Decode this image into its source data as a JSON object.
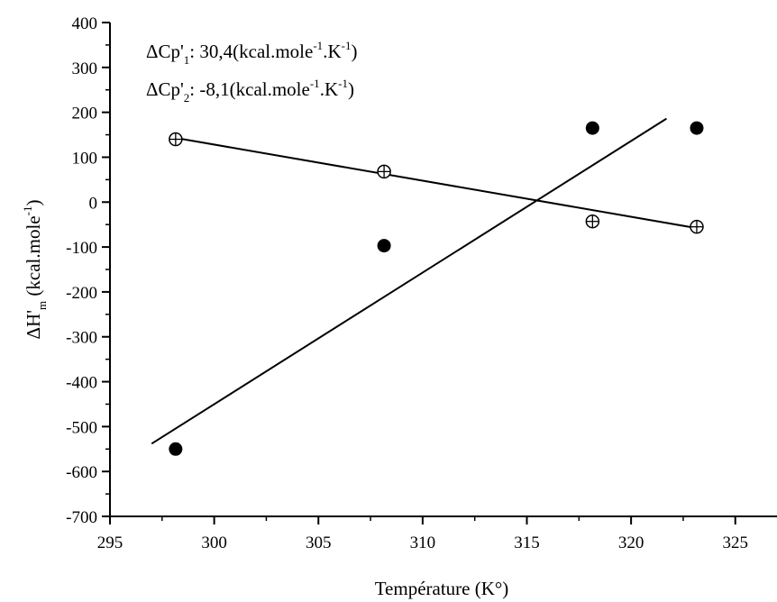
{
  "chart_data": {
    "type": "scatter",
    "title": "",
    "xlabel": "Température (K°)",
    "ylabel": {
      "main": "ΔH'",
      "sub": "m",
      "rest": " (kcal.mole",
      "sup": "-1",
      "close": ")"
    },
    "xlim": [
      295,
      327
    ],
    "ylim": [
      -700,
      400
    ],
    "xticks": [
      295,
      300,
      305,
      310,
      315,
      320,
      325
    ],
    "yticks": [
      -700,
      -600,
      -500,
      -400,
      -300,
      -200,
      -100,
      0,
      100,
      200,
      300,
      400
    ],
    "grid": false,
    "annotations": [
      {
        "delta": "ΔCp'",
        "index": "1",
        "value": ": 30,4(kcal.mole",
        "sup1": "-1",
        "mid": ".K",
        "sup2": "-1",
        "close": ")"
      },
      {
        "delta": "ΔCp'",
        "index": "2",
        "value": ": -8,1(kcal.mole",
        "sup1": "-1",
        "mid": ".K",
        "sup2": "-1",
        "close": ")"
      }
    ],
    "series": [
      {
        "marker": "filled-circle",
        "x": [
          298.15,
          308.15,
          318.15,
          323.15
        ],
        "y": [
          -550,
          -97,
          165,
          165
        ],
        "error": [
          12,
          8,
          0,
          0
        ],
        "fit": {
          "x": [
            297.0,
            321.7
          ],
          "y": [
            -538,
            186
          ]
        }
      },
      {
        "marker": "open-crossed-circle",
        "x": [
          298.15,
          308.15,
          318.15,
          323.15
        ],
        "y": [
          140,
          68,
          -43,
          -55
        ],
        "error": [
          8,
          8,
          8,
          8
        ],
        "fit": {
          "x": [
            298.15,
            323.15
          ],
          "y": [
            143,
            -58
          ]
        }
      }
    ]
  }
}
